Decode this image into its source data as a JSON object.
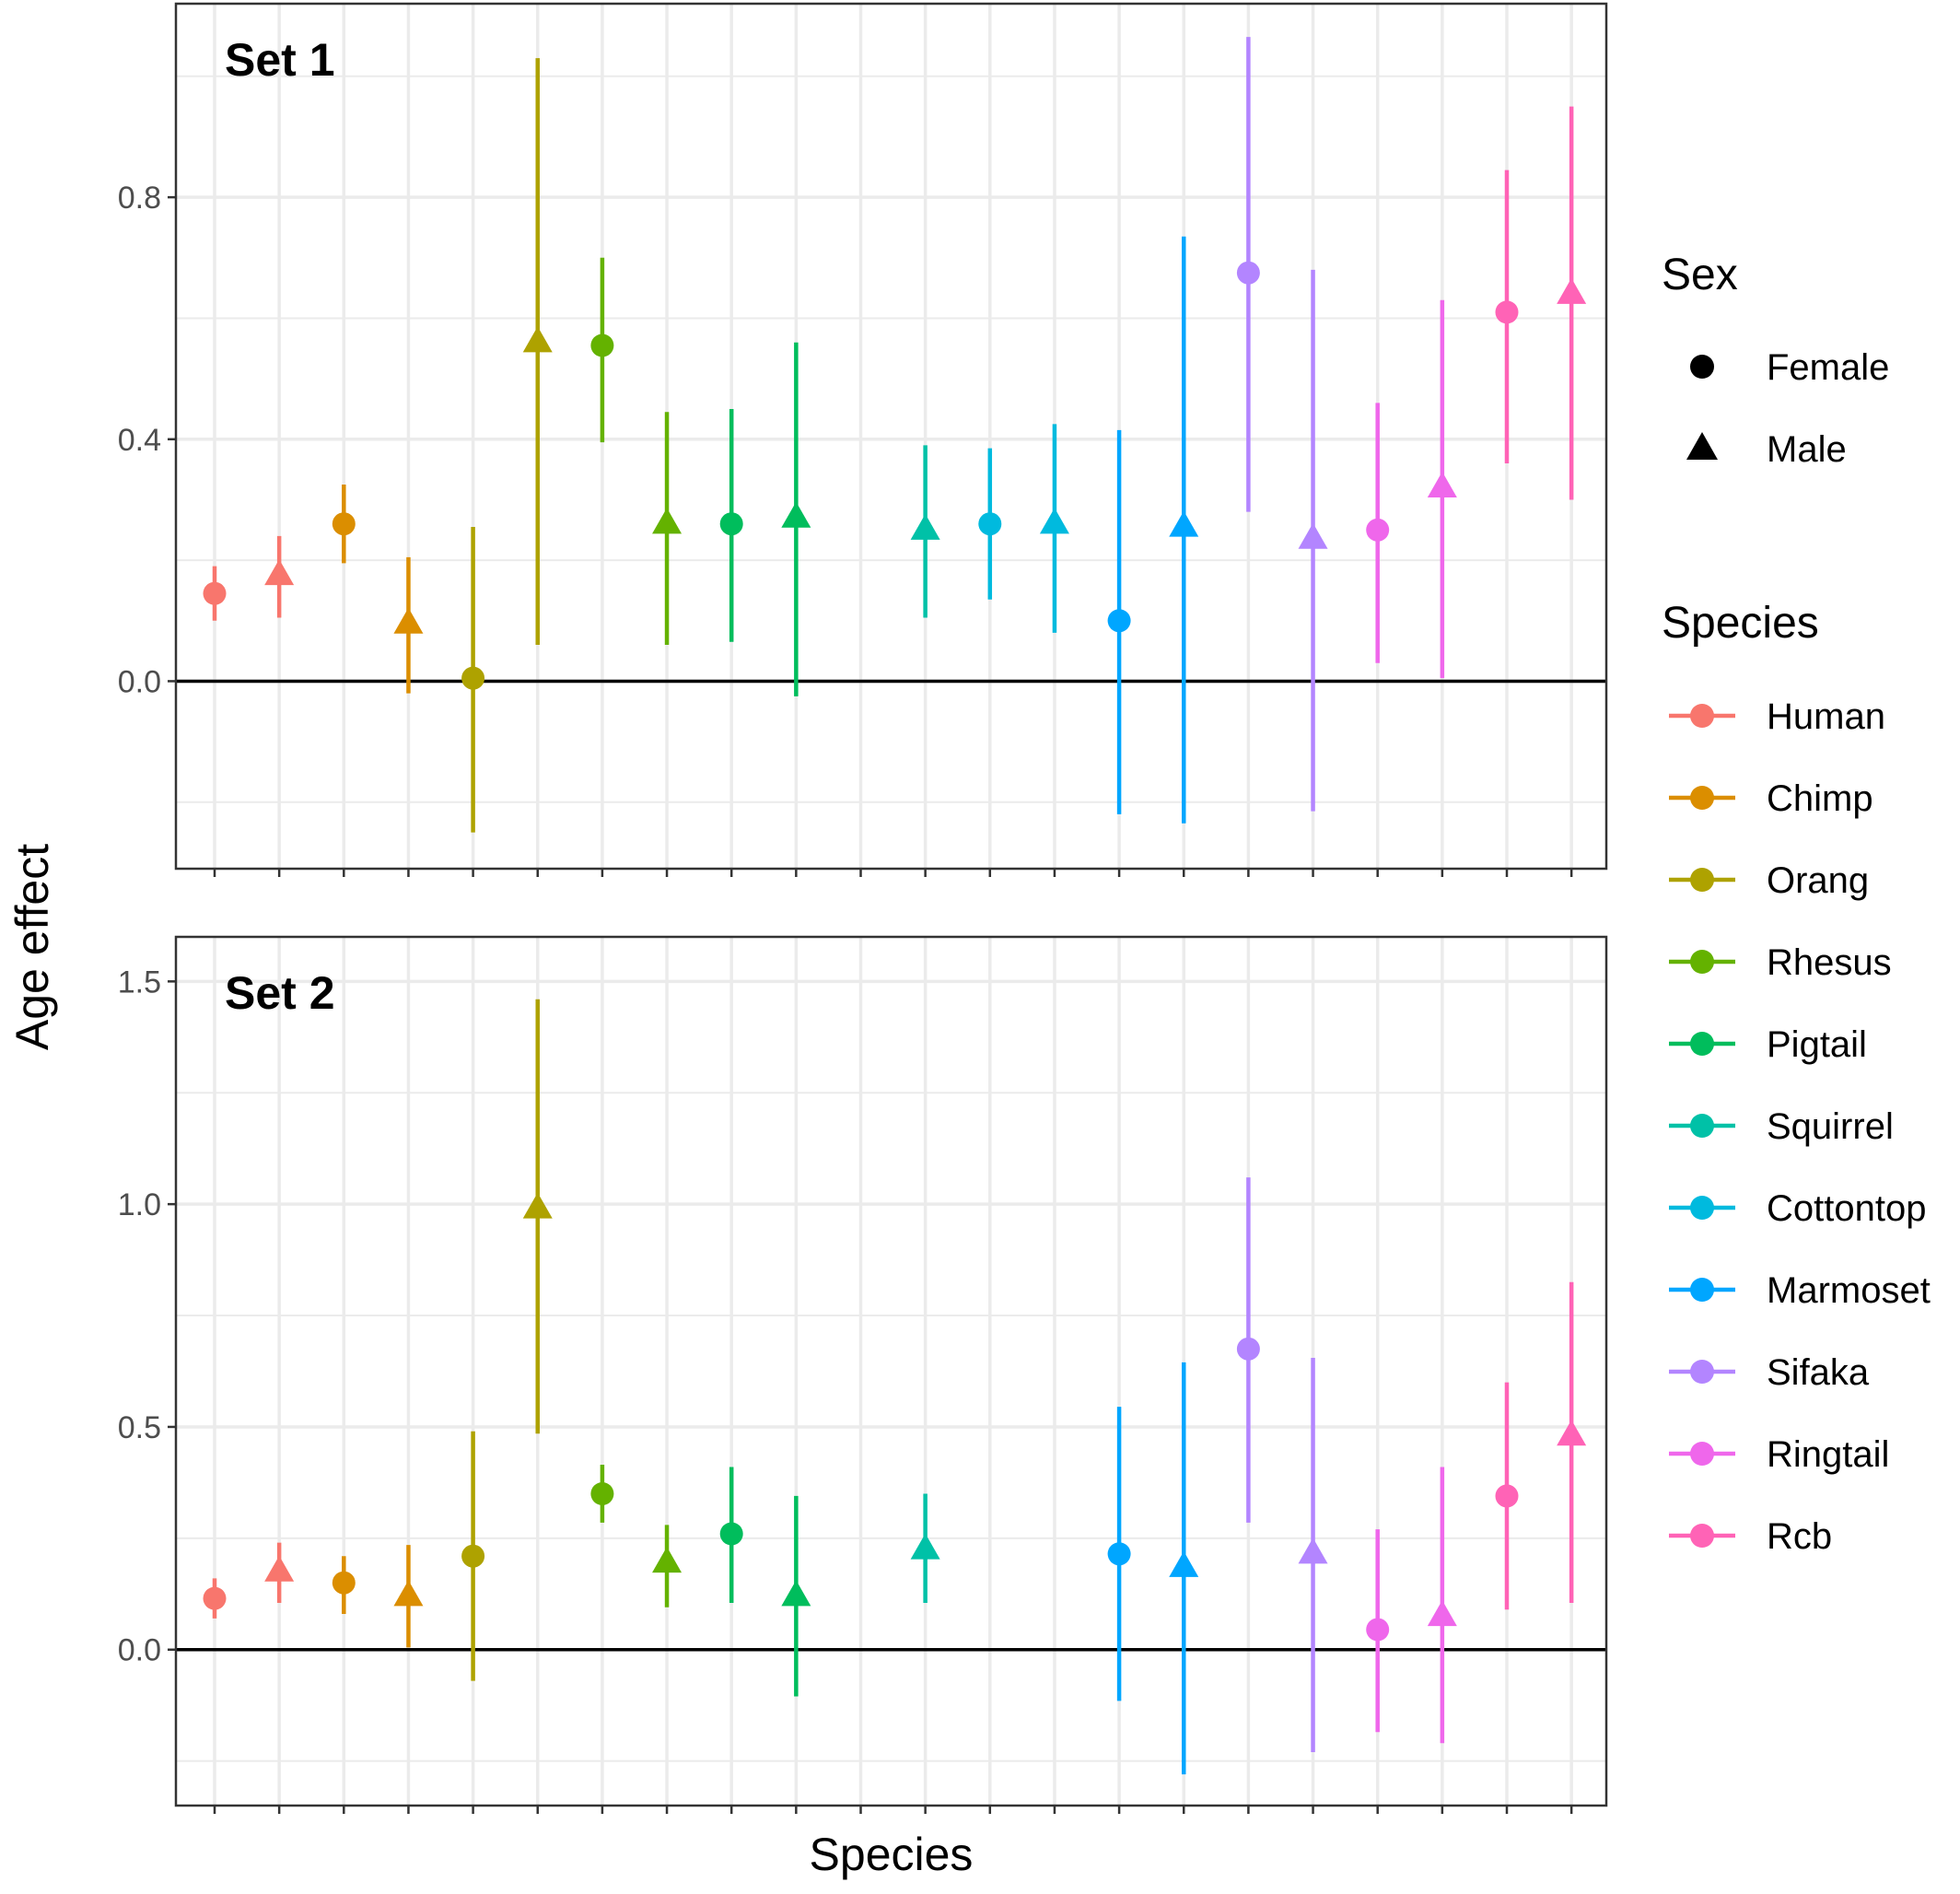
{
  "chart_data": {
    "type": "scatter",
    "subtype": "point-range with error bars, faceted",
    "xlabel": "Species",
    "ylabel": "Age effect",
    "x_tick_labels_shown": false,
    "grid": true,
    "legend_position": "right",
    "legend": {
      "sex_title": "Sex",
      "sex_entries": [
        {
          "label": "Female",
          "shape": "circle"
        },
        {
          "label": "Male",
          "shape": "triangle"
        }
      ],
      "species_title": "Species",
      "species_entries": [
        {
          "label": "Human",
          "color": "#F8766D"
        },
        {
          "label": "Chimp",
          "color": "#DB8E00"
        },
        {
          "label": "Orang",
          "color": "#AEA200"
        },
        {
          "label": "Rhesus",
          "color": "#64B200"
        },
        {
          "label": "Pigtail",
          "color": "#00BD5C"
        },
        {
          "label": "Squirrel",
          "color": "#00C1A7"
        },
        {
          "label": "Cottontop",
          "color": "#00BADE"
        },
        {
          "label": "Marmoset",
          "color": "#00A6FF"
        },
        {
          "label": "Sifaka",
          "color": "#B385FF"
        },
        {
          "label": "Ringtail",
          "color": "#EF67EB"
        },
        {
          "label": "Rcb",
          "color": "#FF63B6"
        }
      ]
    },
    "n_slots": 22,
    "facets": [
      {
        "label": "Set 1",
        "ylim": [
          -0.31,
          1.12
        ],
        "yticks": [
          0.0,
          0.4,
          0.8
        ],
        "ytick_labels": [
          "0.0",
          "0.4",
          "0.8"
        ],
        "points": [
          {
            "slot": 1,
            "species": "Human",
            "sex": "Female",
            "y": 0.145,
            "lo": 0.1,
            "hi": 0.19
          },
          {
            "slot": 2,
            "species": "Human",
            "sex": "Male",
            "y": 0.175,
            "lo": 0.105,
            "hi": 0.24
          },
          {
            "slot": 3,
            "species": "Chimp",
            "sex": "Female",
            "y": 0.26,
            "lo": 0.195,
            "hi": 0.325
          },
          {
            "slot": 4,
            "species": "Chimp",
            "sex": "Male",
            "y": 0.095,
            "lo": -0.02,
            "hi": 0.205
          },
          {
            "slot": 5,
            "species": "Orang",
            "sex": "Female",
            "y": 0.005,
            "lo": -0.25,
            "hi": 0.255
          },
          {
            "slot": 6,
            "species": "Orang",
            "sex": "Male",
            "y": 0.56,
            "lo": 0.06,
            "hi": 1.03
          },
          {
            "slot": 7,
            "species": "Rhesus",
            "sex": "Female",
            "y": 0.555,
            "lo": 0.395,
            "hi": 0.7
          },
          {
            "slot": 8,
            "species": "Rhesus",
            "sex": "Male",
            "y": 0.26,
            "lo": 0.06,
            "hi": 0.445
          },
          {
            "slot": 9,
            "species": "Pigtail",
            "sex": "Female",
            "y": 0.26,
            "lo": 0.065,
            "hi": 0.45
          },
          {
            "slot": 10,
            "species": "Pigtail",
            "sex": "Male",
            "y": 0.27,
            "lo": -0.025,
            "hi": 0.56
          },
          {
            "slot": 12,
            "species": "Squirrel",
            "sex": "Male",
            "y": 0.25,
            "lo": 0.105,
            "hi": 0.39
          },
          {
            "slot": 13,
            "species": "Cottontop",
            "sex": "Female",
            "y": 0.26,
            "lo": 0.135,
            "hi": 0.385
          },
          {
            "slot": 14,
            "species": "Cottontop",
            "sex": "Male",
            "y": 0.26,
            "lo": 0.08,
            "hi": 0.425
          },
          {
            "slot": 15,
            "species": "Marmoset",
            "sex": "Female",
            "y": 0.1,
            "lo": -0.22,
            "hi": 0.415
          },
          {
            "slot": 16,
            "species": "Marmoset",
            "sex": "Male",
            "y": 0.255,
            "lo": -0.235,
            "hi": 0.735
          },
          {
            "slot": 17,
            "species": "Sifaka",
            "sex": "Female",
            "y": 0.675,
            "lo": 0.28,
            "hi": 1.065
          },
          {
            "slot": 18,
            "species": "Sifaka",
            "sex": "Male",
            "y": 0.235,
            "lo": -0.215,
            "hi": 0.68
          },
          {
            "slot": 19,
            "species": "Ringtail",
            "sex": "Female",
            "y": 0.25,
            "lo": 0.03,
            "hi": 0.46
          },
          {
            "slot": 20,
            "species": "Ringtail",
            "sex": "Male",
            "y": 0.32,
            "lo": 0.005,
            "hi": 0.63
          },
          {
            "slot": 21,
            "species": "Rcb",
            "sex": "Female",
            "y": 0.61,
            "lo": 0.36,
            "hi": 0.845
          },
          {
            "slot": 22,
            "species": "Rcb",
            "sex": "Male",
            "y": 0.64,
            "lo": 0.3,
            "hi": 0.95
          }
        ]
      },
      {
        "label": "Set 2",
        "ylim": [
          -0.35,
          1.6
        ],
        "yticks": [
          0.0,
          0.5,
          1.0,
          1.5
        ],
        "ytick_labels": [
          "0.0",
          "0.5",
          "1.0",
          "1.5"
        ],
        "points": [
          {
            "slot": 1,
            "species": "Human",
            "sex": "Female",
            "y": 0.115,
            "lo": 0.07,
            "hi": 0.16
          },
          {
            "slot": 2,
            "species": "Human",
            "sex": "Male",
            "y": 0.175,
            "lo": 0.105,
            "hi": 0.24
          },
          {
            "slot": 3,
            "species": "Chimp",
            "sex": "Female",
            "y": 0.15,
            "lo": 0.08,
            "hi": 0.21
          },
          {
            "slot": 4,
            "species": "Chimp",
            "sex": "Male",
            "y": 0.12,
            "lo": 0.005,
            "hi": 0.235
          },
          {
            "slot": 5,
            "species": "Orang",
            "sex": "Female",
            "y": 0.21,
            "lo": -0.07,
            "hi": 0.49
          },
          {
            "slot": 6,
            "species": "Orang",
            "sex": "Male",
            "y": 0.99,
            "lo": 0.485,
            "hi": 1.46
          },
          {
            "slot": 7,
            "species": "Rhesus",
            "sex": "Female",
            "y": 0.35,
            "lo": 0.285,
            "hi": 0.415
          },
          {
            "slot": 8,
            "species": "Rhesus",
            "sex": "Male",
            "y": 0.195,
            "lo": 0.095,
            "hi": 0.28
          },
          {
            "slot": 9,
            "species": "Pigtail",
            "sex": "Female",
            "y": 0.26,
            "lo": 0.105,
            "hi": 0.41
          },
          {
            "slot": 10,
            "species": "Pigtail",
            "sex": "Male",
            "y": 0.12,
            "lo": -0.105,
            "hi": 0.345
          },
          {
            "slot": 12,
            "species": "Squirrel",
            "sex": "Male",
            "y": 0.225,
            "lo": 0.105,
            "hi": 0.35
          },
          {
            "slot": 15,
            "species": "Marmoset",
            "sex": "Female",
            "y": 0.215,
            "lo": -0.115,
            "hi": 0.545
          },
          {
            "slot": 16,
            "species": "Marmoset",
            "sex": "Male",
            "y": 0.185,
            "lo": -0.28,
            "hi": 0.645
          },
          {
            "slot": 17,
            "species": "Sifaka",
            "sex": "Female",
            "y": 0.675,
            "lo": 0.285,
            "hi": 1.06
          },
          {
            "slot": 18,
            "species": "Sifaka",
            "sex": "Male",
            "y": 0.215,
            "lo": -0.23,
            "hi": 0.655
          },
          {
            "slot": 19,
            "species": "Ringtail",
            "sex": "Female",
            "y": 0.045,
            "lo": -0.185,
            "hi": 0.27
          },
          {
            "slot": 20,
            "species": "Ringtail",
            "sex": "Male",
            "y": 0.075,
            "lo": -0.21,
            "hi": 0.41
          },
          {
            "slot": 21,
            "species": "Rcb",
            "sex": "Female",
            "y": 0.345,
            "lo": 0.09,
            "hi": 0.6
          },
          {
            "slot": 22,
            "species": "Rcb",
            "sex": "Male",
            "y": 0.48,
            "lo": 0.105,
            "hi": 0.825
          }
        ]
      }
    ]
  }
}
